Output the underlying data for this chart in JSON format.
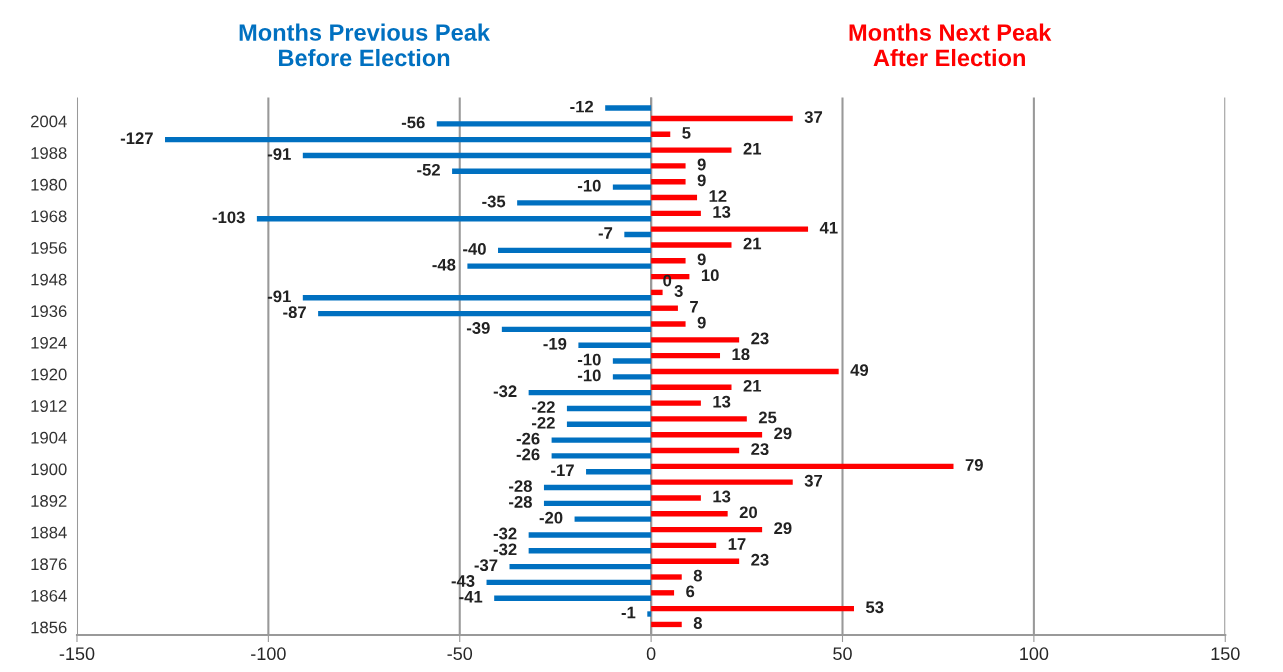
{
  "chart_data": {
    "type": "bar",
    "orientation": "horizontal",
    "categories": [
      null,
      "2004",
      null,
      "1988",
      null,
      "1980",
      null,
      "1968",
      null,
      "1956",
      null,
      "1948",
      null,
      "1936",
      null,
      "1924",
      null,
      "1920",
      null,
      "1912",
      null,
      "1904",
      null,
      "1900",
      null,
      "1892",
      null,
      "1884",
      null,
      "1876",
      null,
      "1864",
      null,
      "1856"
    ],
    "series": [
      {
        "name": "Months Previous Peak\nBefore Election",
        "color": "#0070c0",
        "values": [
          -12,
          -56,
          -127,
          -91,
          -52,
          -10,
          -35,
          -103,
          -7,
          -40,
          -48,
          0,
          -91,
          -87,
          -39,
          -19,
          -10,
          -10,
          -32,
          -22,
          -22,
          -26,
          -26,
          -17,
          -28,
          -28,
          -20,
          -32,
          -32,
          -37,
          -43,
          -41,
          -1,
          null
        ]
      },
      {
        "name": "Months Next Peak\nAfter Election",
        "color": "#ff0000",
        "values": [
          null,
          37,
          5,
          21,
          9,
          9,
          12,
          13,
          41,
          21,
          9,
          10,
          3,
          7,
          9,
          23,
          18,
          49,
          21,
          13,
          25,
          29,
          23,
          79,
          37,
          13,
          20,
          29,
          17,
          23,
          8,
          6,
          53,
          8
        ]
      }
    ],
    "xlim": [
      -150,
      150
    ],
    "xticks": [
      -150,
      -100,
      -50,
      0,
      50,
      100,
      150
    ],
    "grid": "x",
    "data_labels": true,
    "legend": "top"
  }
}
